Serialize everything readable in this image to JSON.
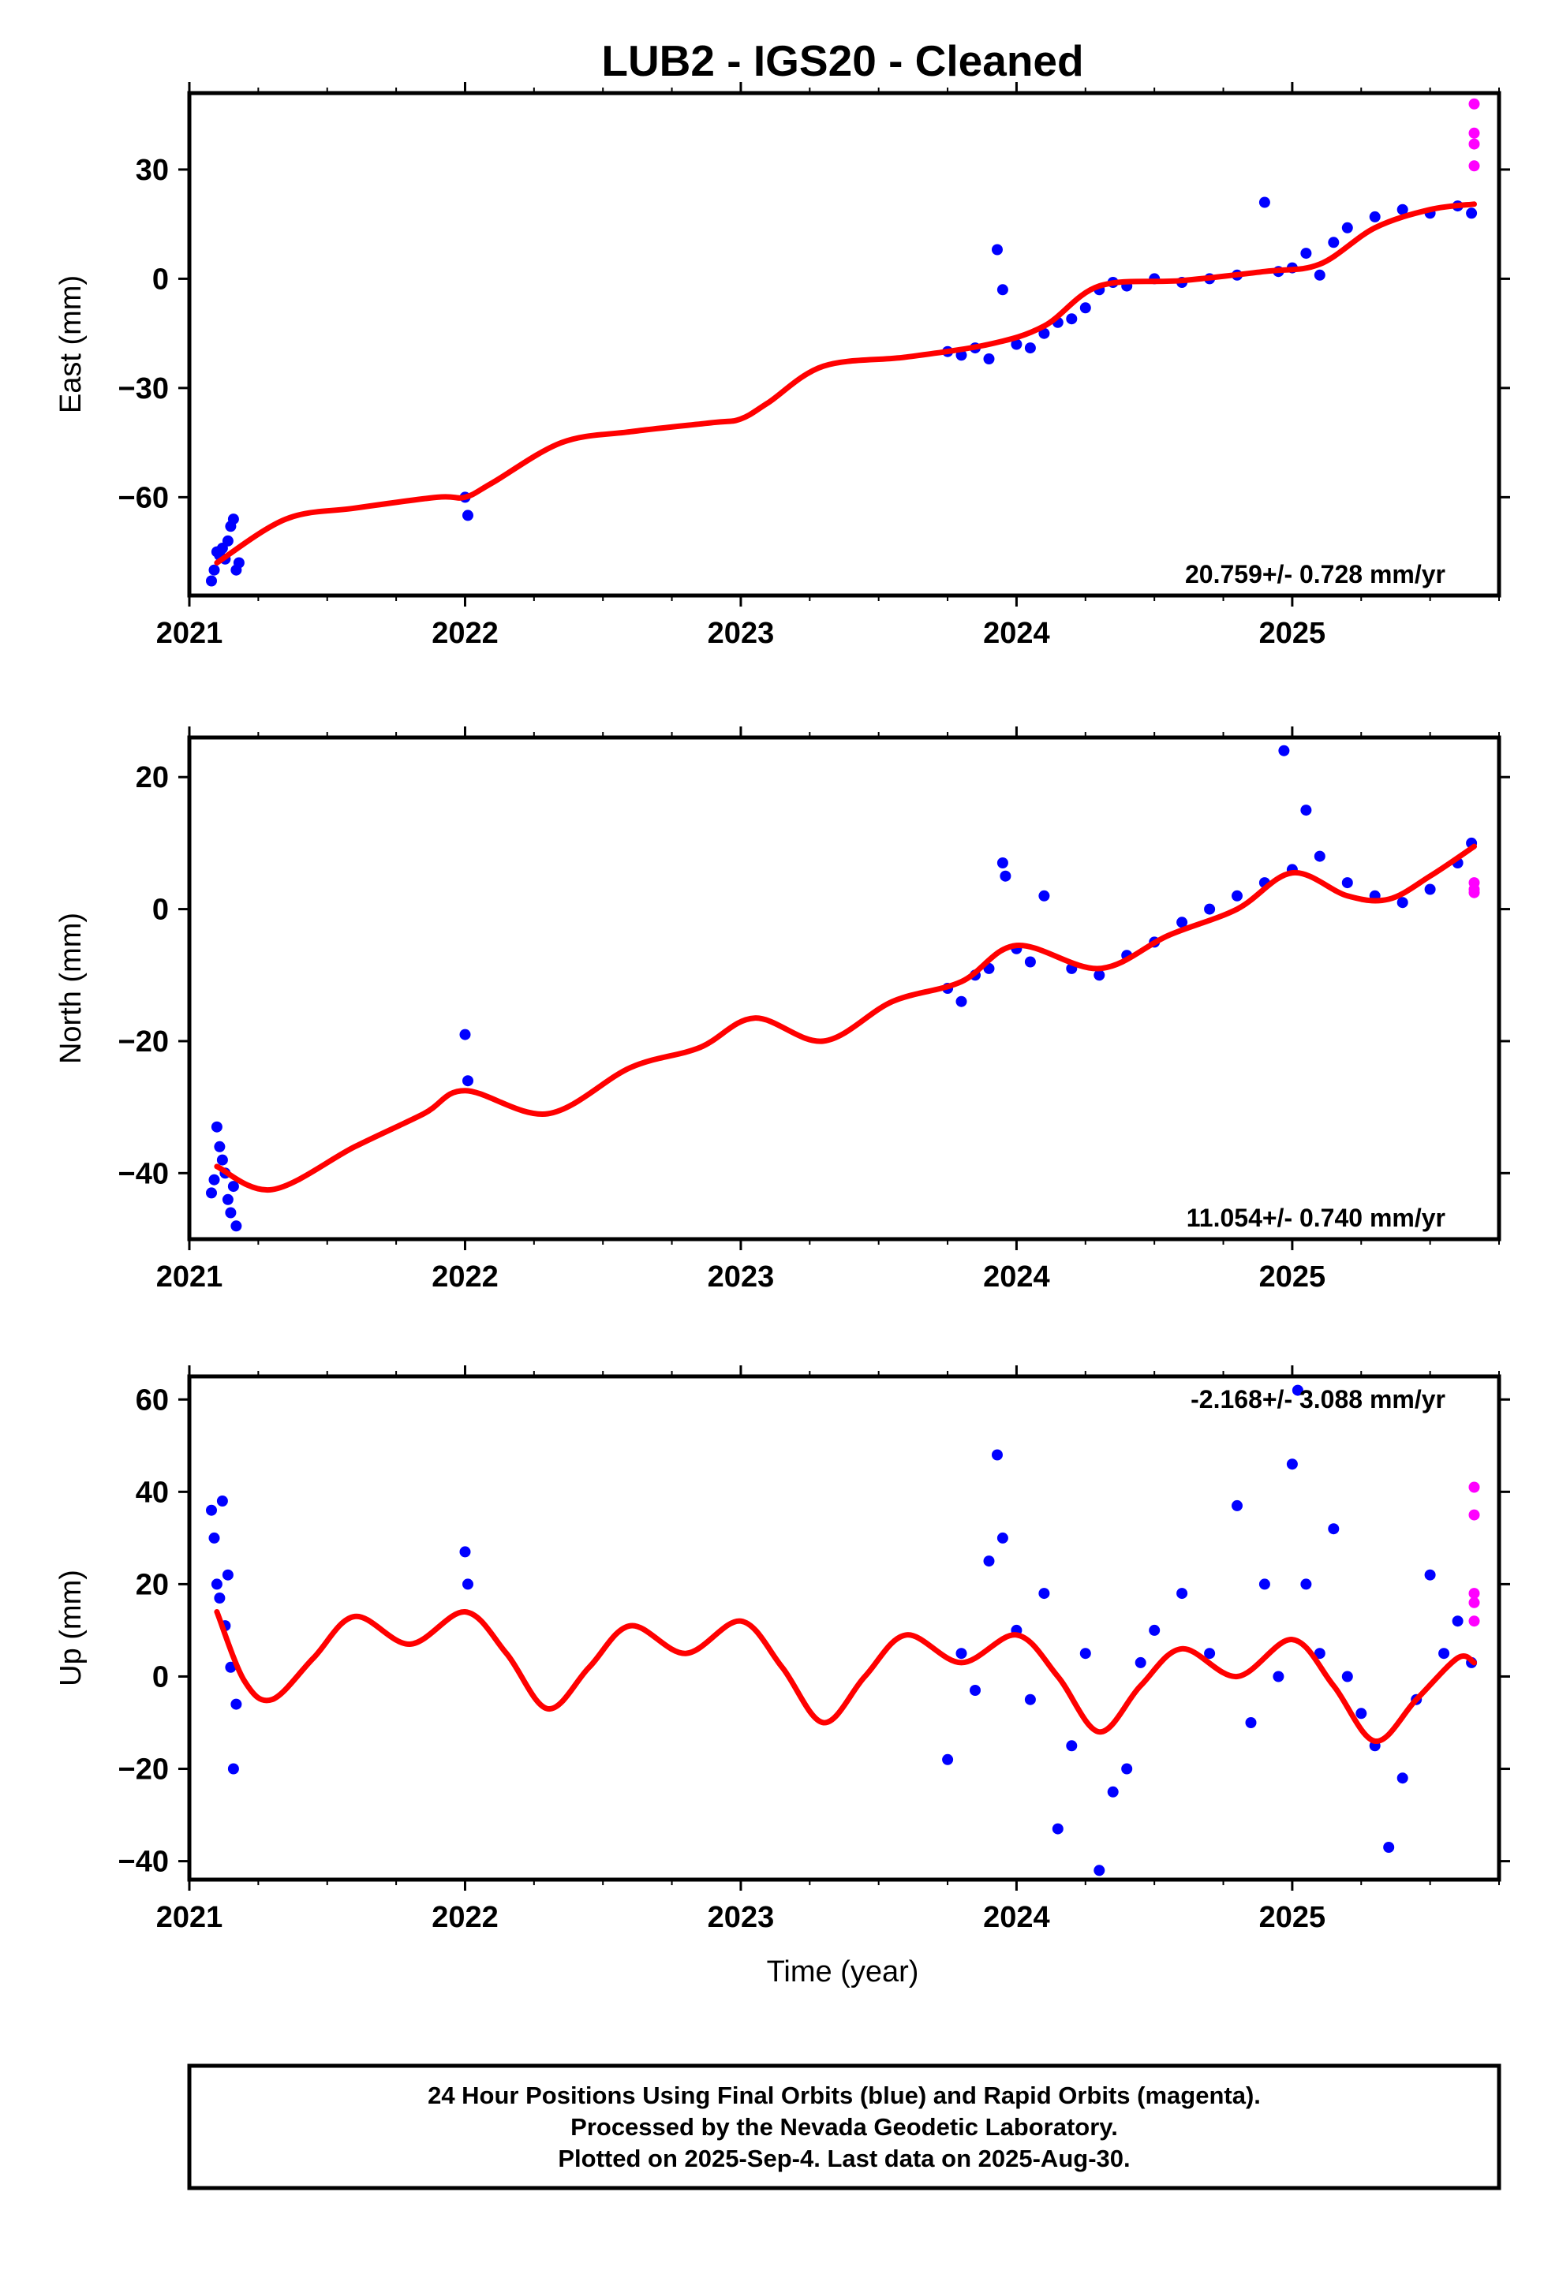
{
  "chart_data": {
    "title": "LUB2  - IGS20 - Cleaned",
    "type": "scatter",
    "xlabel": "Time (year)",
    "xlim": [
      2021.0,
      2025.75
    ],
    "x_ticks": [
      "2021",
      "2022",
      "2023",
      "2024",
      "2025"
    ],
    "colors": {
      "final": "#0000ff",
      "rapid": "#ff00ff",
      "fit": "#ff0000",
      "frame": "#000000"
    },
    "series_names": [
      "24 Hour Positions Final Orbits",
      "Rapid Orbits",
      "Model fit"
    ],
    "panels": [
      {
        "name": "east",
        "ylabel": "East (mm)",
        "ylim": [
          -87,
          51
        ],
        "y_ticks": [
          30,
          0,
          -30,
          -60
        ],
        "rate_label": "20.759+/- 0.728 mm/yr",
        "rate_position": "bottom-right",
        "trend": {
          "slope": 20.759,
          "t0": 2021.1,
          "y0": -79
        },
        "model": {
          "x": [
            2021.1,
            2021.35,
            2021.6,
            2021.9,
            2022.0,
            2022.1,
            2022.35,
            2022.6,
            2022.9,
            2023.0,
            2023.1,
            2023.3,
            2023.6,
            2023.9,
            2024.1,
            2024.3,
            2024.6,
            2024.9,
            2025.1,
            2025.3,
            2025.5,
            2025.66
          ],
          "y": [
            -78,
            -66,
            -63,
            -60,
            -60,
            -56,
            -45,
            -42,
            -39.5,
            -38.5,
            -34,
            -24,
            -21.5,
            -18,
            -13,
            -2,
            -0.5,
            2,
            4,
            14,
            19,
            20.5
          ]
        },
        "final_points": {
          "x": [
            2021.08,
            2021.09,
            2021.1,
            2021.11,
            2021.12,
            2021.13,
            2021.14,
            2021.15,
            2021.16,
            2021.17,
            2021.18,
            2022.0,
            2022.01,
            2023.75,
            2023.8,
            2023.85,
            2023.9,
            2023.93,
            2023.95,
            2024.0,
            2024.05,
            2024.1,
            2024.15,
            2024.2,
            2024.25,
            2024.3,
            2024.35,
            2024.4,
            2024.5,
            2024.6,
            2024.7,
            2024.8,
            2024.9,
            2024.95,
            2025.0,
            2025.05,
            2025.1,
            2025.15,
            2025.2,
            2025.3,
            2025.4,
            2025.5,
            2025.6,
            2025.65
          ],
          "y": [
            -83,
            -80,
            -75,
            -76,
            -74,
            -77,
            -72,
            -68,
            -66,
            -80,
            -78,
            -60,
            -65,
            -20,
            -21,
            -19,
            -22,
            8,
            -3,
            -18,
            -19,
            -15,
            -12,
            -11,
            -8,
            -3,
            -1,
            -2,
            0,
            -1,
            0,
            1,
            21,
            2,
            3,
            7,
            1,
            10,
            14,
            17,
            19,
            18,
            20,
            18
          ]
        },
        "rapid_points": {
          "x": [
            2025.66,
            2025.66,
            2025.66,
            2025.66
          ],
          "y": [
            48,
            40,
            37,
            31
          ]
        }
      },
      {
        "name": "north",
        "ylabel": "North (mm)",
        "ylim": [
          -50,
          26
        ],
        "y_ticks": [
          20,
          0,
          -20,
          -40
        ],
        "rate_label": "11.054+/- 0.740 mm/yr",
        "rate_position": "bottom-right",
        "trend": {
          "slope": 11.054,
          "t0": 2021.1,
          "y0": -39
        },
        "model": {
          "x": [
            2021.1,
            2021.3,
            2021.6,
            2021.85,
            2022.0,
            2022.3,
            2022.6,
            2022.85,
            2023.05,
            2023.3,
            2023.55,
            2023.8,
            2024.0,
            2024.3,
            2024.55,
            2024.8,
            2025.0,
            2025.2,
            2025.35,
            2025.5,
            2025.66
          ],
          "y": [
            -39,
            -42.5,
            -36,
            -31,
            -27.5,
            -31,
            -24,
            -21,
            -16.5,
            -20,
            -14,
            -11,
            -5.5,
            -9,
            -4,
            0,
            5.5,
            2,
            1.5,
            5,
            9.5
          ]
        },
        "final_points": {
          "x": [
            2021.08,
            2021.09,
            2021.1,
            2021.11,
            2021.12,
            2021.13,
            2021.14,
            2021.15,
            2021.16,
            2021.17,
            2022.0,
            2022.01,
            2023.75,
            2023.8,
            2023.85,
            2023.9,
            2023.95,
            2023.96,
            2024.0,
            2024.05,
            2024.1,
            2024.2,
            2024.3,
            2024.4,
            2024.5,
            2024.6,
            2024.7,
            2024.8,
            2024.9,
            2024.97,
            2025.0,
            2025.05,
            2025.1,
            2025.2,
            2025.3,
            2025.4,
            2025.5,
            2025.6,
            2025.65
          ],
          "y": [
            -43,
            -41,
            -33,
            -36,
            -38,
            -40,
            -44,
            -46,
            -42,
            -48,
            -19,
            -26,
            -12,
            -14,
            -10,
            -9,
            7,
            5,
            -6,
            -8,
            2,
            -9,
            -10,
            -7,
            -5,
            -2,
            0,
            2,
            4,
            24,
            6,
            15,
            8,
            4,
            2,
            1,
            3,
            7,
            10
          ]
        },
        "rapid_points": {
          "x": [
            2025.66,
            2025.66,
            2025.66
          ],
          "y": [
            4,
            3,
            2.5
          ]
        }
      },
      {
        "name": "up",
        "ylabel": "Up (mm)",
        "ylim": [
          -44,
          65
        ],
        "y_ticks": [
          60,
          40,
          20,
          0,
          -20,
          -40
        ],
        "rate_label": "-2.168+/- 3.088 mm/yr",
        "rate_position": "top-right",
        "trend": {
          "slope": -2.168,
          "t0": 2021.1,
          "y0": 10
        },
        "model": {
          "x": [
            2021.1,
            2021.2,
            2021.3,
            2021.45,
            2021.6,
            2021.8,
            2022.0,
            2022.15,
            2022.3,
            2022.45,
            2022.6,
            2022.8,
            2023.0,
            2023.15,
            2023.3,
            2023.45,
            2023.6,
            2023.8,
            2024.0,
            2024.15,
            2024.3,
            2024.45,
            2024.6,
            2024.8,
            2025.0,
            2025.15,
            2025.3,
            2025.45,
            2025.6,
            2025.66
          ],
          "y": [
            14,
            -1,
            -5,
            4,
            13,
            7,
            14,
            5,
            -7,
            2,
            11,
            5,
            12,
            2,
            -10,
            0,
            9,
            3,
            9,
            0,
            -12,
            -2,
            6,
            0,
            8,
            -2,
            -14,
            -5,
            4,
            3
          ]
        },
        "final_points": {
          "x": [
            2021.08,
            2021.09,
            2021.1,
            2021.11,
            2021.12,
            2021.13,
            2021.14,
            2021.15,
            2021.16,
            2021.17,
            2022.0,
            2022.01,
            2023.75,
            2023.8,
            2023.85,
            2023.9,
            2023.93,
            2023.95,
            2024.0,
            2024.05,
            2024.1,
            2024.15,
            2024.2,
            2024.25,
            2024.3,
            2024.35,
            2024.4,
            2024.45,
            2024.5,
            2024.6,
            2024.7,
            2024.8,
            2024.85,
            2024.9,
            2024.95,
            2025.0,
            2025.02,
            2025.05,
            2025.1,
            2025.15,
            2025.2,
            2025.25,
            2025.3,
            2025.35,
            2025.4,
            2025.45,
            2025.5,
            2025.55,
            2025.6,
            2025.65
          ],
          "y": [
            36,
            30,
            20,
            17,
            38,
            11,
            22,
            2,
            -20,
            -6,
            27,
            20,
            -18,
            5,
            -3,
            25,
            48,
            30,
            10,
            -5,
            18,
            -33,
            -15,
            5,
            -42,
            -25,
            -20,
            3,
            10,
            18,
            5,
            37,
            -10,
            20,
            0,
            46,
            62,
            20,
            5,
            32,
            0,
            -8,
            -15,
            -37,
            -22,
            -5,
            22,
            5,
            12,
            3
          ]
        },
        "rapid_points": {
          "x": [
            2025.66,
            2025.66,
            2025.66,
            2025.66,
            2025.66
          ],
          "y": [
            41,
            35,
            18,
            16,
            12
          ]
        }
      }
    ],
    "footer": [
      "24 Hour Positions Using Final Orbits (blue) and Rapid Orbits (magenta).",
      "Processed by the Nevada Geodetic Laboratory.",
      "Plotted on 2025-Sep-4. Last data on 2025-Aug-30."
    ]
  }
}
